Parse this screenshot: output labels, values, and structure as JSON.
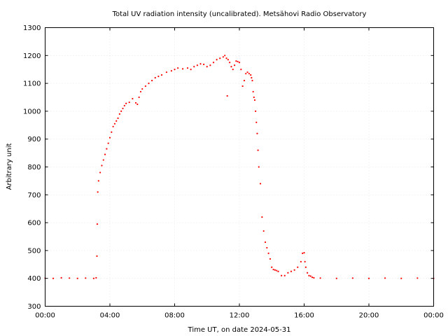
{
  "chart_data": {
    "type": "scatter",
    "title": "Total UV radiation intensity (uncalibrated). Metsähovi Radio Observatory",
    "xlabel": "Time UT, on date 2024-05-31",
    "ylabel": "Arbitrary unit",
    "x_unit": "hours UT",
    "xlim": [
      0,
      24
    ],
    "ylim": [
      300,
      1300
    ],
    "x_ticks": [
      {
        "value": 0,
        "label": "00:00"
      },
      {
        "value": 4,
        "label": "04:00"
      },
      {
        "value": 8,
        "label": "08:00"
      },
      {
        "value": 12,
        "label": "12:00"
      },
      {
        "value": 16,
        "label": "16:00"
      },
      {
        "value": 20,
        "label": "20:00"
      },
      {
        "value": 24,
        "label": "00:00"
      }
    ],
    "y_ticks": [
      300,
      400,
      500,
      600,
      700,
      800,
      900,
      1000,
      1100,
      1200,
      1300
    ],
    "grid": true,
    "marker_color": "#ff0000",
    "series": [
      {
        "x": [
          0.0,
          0.5,
          1.0,
          1.5,
          2.0,
          2.5,
          3.0,
          3.15,
          3.2,
          3.22,
          3.25,
          3.3,
          3.4,
          3.5,
          3.6,
          3.7,
          3.8,
          3.9,
          4.0,
          4.1,
          4.2,
          4.3,
          4.4,
          4.5,
          4.6,
          4.7,
          4.8,
          4.9,
          5.0,
          5.2,
          5.4,
          5.6,
          5.7,
          5.8,
          5.9,
          6.0,
          6.2,
          6.4,
          6.6,
          6.8,
          7.0,
          7.2,
          7.5,
          7.8,
          8.0,
          8.2,
          8.5,
          8.8,
          9.0,
          9.2,
          9.4,
          9.6,
          9.8,
          10.0,
          10.2,
          10.4,
          10.6,
          10.8,
          11.0,
          11.1,
          11.2,
          11.25,
          11.3,
          11.4,
          11.5,
          11.6,
          11.7,
          11.8,
          11.9,
          12.0,
          12.1,
          12.2,
          12.3,
          12.4,
          12.5,
          12.6,
          12.7,
          12.75,
          12.8,
          12.85,
          12.9,
          12.95,
          13.0,
          13.05,
          13.1,
          13.15,
          13.2,
          13.3,
          13.4,
          13.5,
          13.6,
          13.7,
          13.8,
          13.9,
          14.0,
          14.1,
          14.2,
          14.3,
          14.4,
          14.6,
          14.8,
          15.0,
          15.2,
          15.4,
          15.6,
          15.8,
          15.9,
          16.0,
          16.05,
          16.1,
          16.2,
          16.3,
          16.4,
          16.5,
          16.6,
          17.0,
          18.0,
          19.0,
          20.0,
          21.0,
          22.0,
          23.0,
          24.0
        ],
        "y": [
          401,
          400,
          402,
          401,
          400,
          401,
          400,
          402,
          480,
          595,
          710,
          750,
          780,
          805,
          825,
          845,
          865,
          885,
          905,
          925,
          945,
          955,
          965,
          975,
          990,
          1000,
          1010,
          1020,
          1028,
          1032,
          1045,
          1030,
          1025,
          1050,
          1070,
          1080,
          1090,
          1100,
          1110,
          1120,
          1125,
          1130,
          1140,
          1145,
          1150,
          1155,
          1152,
          1155,
          1150,
          1160,
          1165,
          1170,
          1168,
          1160,
          1165,
          1175,
          1185,
          1190,
          1195,
          1200,
          1190,
          1055,
          1185,
          1175,
          1160,
          1150,
          1165,
          1180,
          1178,
          1175,
          1150,
          1090,
          1110,
          1135,
          1140,
          1135,
          1130,
          1120,
          1110,
          1070,
          1050,
          1040,
          1000,
          960,
          920,
          860,
          800,
          740,
          620,
          570,
          530,
          510,
          490,
          470,
          440,
          432,
          430,
          428,
          425,
          410,
          410,
          420,
          425,
          430,
          440,
          460,
          490,
          492,
          460,
          440,
          420,
          410,
          408,
          404,
          402,
          401,
          400,
          401,
          400,
          401,
          400,
          401,
          400
        ]
      }
    ]
  }
}
